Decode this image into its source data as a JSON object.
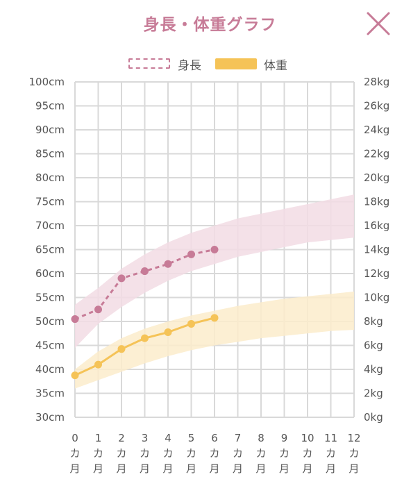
{
  "header": {
    "title": "身長・体重グラフ",
    "close_icon": "close-icon"
  },
  "legend": {
    "height_label": "身長",
    "weight_label": "体重"
  },
  "colors": {
    "height": "#c77b97",
    "height_band": "#f2dce4",
    "weight": "#f5c357",
    "weight_band": "#fbeccb",
    "grid": "#d9d9d9",
    "title": "#c77b97"
  },
  "chart_data": {
    "type": "line",
    "x": [
      0,
      1,
      2,
      3,
      4,
      5,
      6,
      7,
      8,
      9,
      10,
      11,
      12
    ],
    "x_tick_labels": [
      "0",
      "1",
      "2",
      "3",
      "4",
      "5",
      "6",
      "7",
      "8",
      "9",
      "10",
      "11",
      "12"
    ],
    "x_unit_labels": [
      "カ",
      "月"
    ],
    "y_left": {
      "range": [
        30,
        100
      ],
      "ticks": [
        30,
        35,
        40,
        45,
        50,
        55,
        60,
        65,
        70,
        75,
        80,
        85,
        90,
        95,
        100
      ],
      "unit": "cm"
    },
    "y_right": {
      "range": [
        0,
        28
      ],
      "ticks": [
        0,
        2,
        4,
        6,
        8,
        10,
        12,
        14,
        16,
        18,
        20,
        22,
        24,
        26,
        28
      ],
      "unit": "kg"
    },
    "grid": true,
    "legend_position": "top-center",
    "series": [
      {
        "name": "身長",
        "axis": "left",
        "style": "dashed",
        "x": [
          0,
          1,
          2,
          3,
          4,
          5,
          6
        ],
        "values": [
          50.5,
          52.5,
          59,
          60.5,
          62,
          64,
          65
        ]
      },
      {
        "name": "体重",
        "axis": "right",
        "style": "solid",
        "x": [
          0,
          1,
          2,
          3,
          4,
          5,
          6
        ],
        "values": [
          3.5,
          4.4,
          5.7,
          6.6,
          7.1,
          7.8,
          8.3
        ]
      }
    ],
    "bands": [
      {
        "series": "身長",
        "axis": "left",
        "x": [
          0,
          1,
          2,
          3,
          4,
          5,
          6,
          7,
          8,
          9,
          10,
          11,
          12
        ],
        "lower": [
          44.5,
          49.5,
          53,
          56,
          58.5,
          60.5,
          62,
          63.5,
          64.5,
          65.5,
          66.5,
          67,
          67.5
        ],
        "upper": [
          53.5,
          57,
          61,
          64,
          66.5,
          68.5,
          70,
          71.5,
          72.5,
          73.5,
          74.5,
          75.5,
          76.5
        ]
      },
      {
        "series": "体重",
        "axis": "right",
        "x": [
          0,
          1,
          2,
          3,
          4,
          5,
          6,
          7,
          8,
          9,
          10,
          11,
          12
        ],
        "lower": [
          2.4,
          3.1,
          3.8,
          4.5,
          5.1,
          5.6,
          6.0,
          6.3,
          6.6,
          6.8,
          7.0,
          7.2,
          7.3
        ],
        "upper": [
          4.0,
          5.5,
          6.6,
          7.4,
          8.0,
          8.5,
          8.9,
          9.3,
          9.6,
          9.9,
          10.1,
          10.3,
          10.5
        ]
      }
    ]
  }
}
